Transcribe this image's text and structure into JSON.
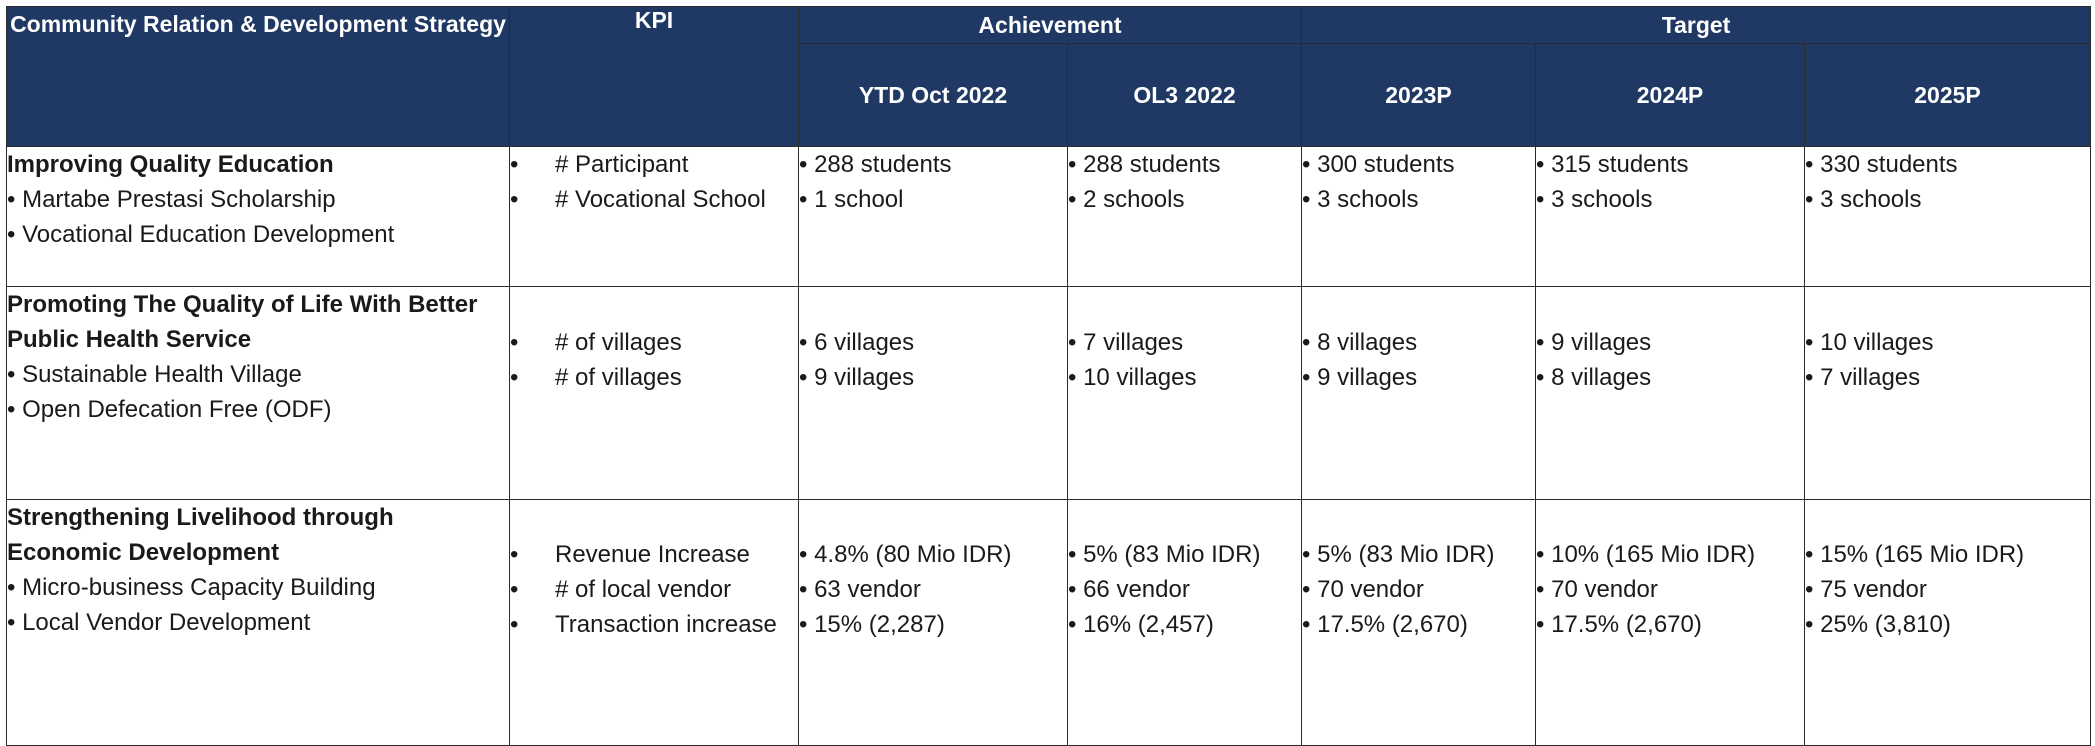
{
  "header": {
    "strategy": "Community Relation & Development Strategy",
    "kpi": "KPI",
    "achievement": "Achievement",
    "target": "Target",
    "periods": [
      "YTD Oct 2022",
      "OL3 2022",
      "2023P",
      "2024P",
      "2025P"
    ]
  },
  "kpi_bullet": "•",
  "rows": [
    {
      "title": "Improving Quality Education",
      "items": [
        "Martabe Prestasi Scholarship",
        "Vocational Education Development"
      ],
      "kpis": [
        "# Participant",
        "# Vocational School"
      ],
      "values": [
        [
          "288 students",
          "1 school"
        ],
        [
          "288 students",
          "2 schools"
        ],
        [
          "300 students",
          "3 schools"
        ],
        [
          "315 students",
          "3 schools"
        ],
        [
          "330 students",
          "3 schools"
        ]
      ]
    },
    {
      "title": "Promoting The Quality of Life With Better Public Health Service",
      "items": [
        "Sustainable Health Village",
        "Open Defecation Free (ODF)"
      ],
      "kpis": [
        "# of villages",
        "# of villages"
      ],
      "values": [
        [
          "6 villages",
          "9 villages"
        ],
        [
          "7 villages",
          "10 villages"
        ],
        [
          "8 villages",
          "9 villages"
        ],
        [
          "9 villages",
          "8 villages"
        ],
        [
          "10 villages",
          "7 villages"
        ]
      ]
    },
    {
      "title": "Strengthening Livelihood through Economic Development",
      "items": [
        "Micro-business Capacity Building",
        "Local Vendor Development"
      ],
      "kpis": [
        "Revenue Increase",
        "# of local vendor",
        "Transaction increase"
      ],
      "values": [
        [
          "4.8% (80 Mio IDR)",
          "63 vendor",
          "15% (2,287)"
        ],
        [
          "5% (83 Mio IDR)",
          "66 vendor",
          "16% (2,457)"
        ],
        [
          "5% (83 Mio IDR)",
          "70 vendor",
          "17.5% (2,670)"
        ],
        [
          "10% (165 Mio IDR)",
          "70 vendor",
          "17.5% (2,670)"
        ],
        [
          "15% (165 Mio IDR)",
          "75 vendor",
          "25% (3,810)"
        ]
      ]
    }
  ]
}
